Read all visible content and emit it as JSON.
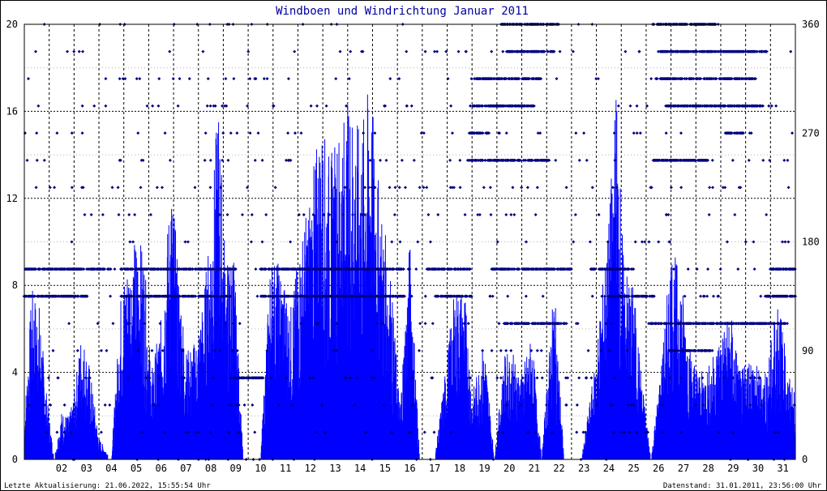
{
  "title": "Windboen und Windrichtung Januar 2011",
  "footer": {
    "left": "Letzte Aktualisierung: 21.06.2022, 15:55:54 Uhr",
    "right": "Datenstand: 31.01.2011, 23:56:00 Uhr"
  },
  "colors": {
    "gust": "#0000ff",
    "direction": "#000080",
    "title": "#0000a0",
    "grid": "#000000"
  },
  "chart_data": {
    "type": "bar",
    "title": "Windboen und Windrichtung Januar 2011",
    "x_days": [
      "02",
      "03",
      "04",
      "05",
      "06",
      "07",
      "08",
      "09",
      "10",
      "11",
      "12",
      "13",
      "14",
      "15",
      "16",
      "17",
      "18",
      "19",
      "20",
      "21",
      "22",
      "23",
      "24",
      "25",
      "26",
      "27",
      "28",
      "29",
      "30",
      "31"
    ],
    "xlim": [
      1,
      32
    ],
    "ylim_left": [
      0,
      20
    ],
    "yticks_left": [
      "0",
      "4",
      "8",
      "12",
      "16",
      "20"
    ],
    "ylim_right": [
      0,
      360
    ],
    "yticks_right": [
      "0",
      "90",
      "180",
      "270",
      "360"
    ],
    "grid": true,
    "series": [
      {
        "type": "bar",
        "gust_envelope_by_day": [
          {
            "day": 1.0,
            "max": 1.8
          },
          {
            "day": 1.3,
            "max": 7.9
          },
          {
            "day": 1.6,
            "max": 7.2
          },
          {
            "day": 1.9,
            "max": 3.0
          },
          {
            "day": 2.2,
            "max": 0.0
          },
          {
            "day": 2.5,
            "max": 2.2
          },
          {
            "day": 2.8,
            "max": 2.0
          },
          {
            "day": 3.0,
            "max": 3.0
          },
          {
            "day": 3.3,
            "max": 6.0
          },
          {
            "day": 3.6,
            "max": 4.5
          },
          {
            "day": 4.0,
            "max": 1.0
          },
          {
            "day": 4.5,
            "max": 0.0
          },
          {
            "day": 4.9,
            "max": 8.0
          },
          {
            "day": 5.2,
            "max": 9.5
          },
          {
            "day": 5.5,
            "max": 10.3
          },
          {
            "day": 5.8,
            "max": 9.8
          },
          {
            "day": 6.1,
            "max": 4.0
          },
          {
            "day": 6.5,
            "max": 6.5
          },
          {
            "day": 6.9,
            "max": 13.0
          },
          {
            "day": 7.2,
            "max": 9.0
          },
          {
            "day": 7.5,
            "max": 5.0
          },
          {
            "day": 7.9,
            "max": 5.5
          },
          {
            "day": 8.2,
            "max": 7.5
          },
          {
            "day": 8.5,
            "max": 11.0
          },
          {
            "day": 8.8,
            "max": 16.8
          },
          {
            "day": 9.1,
            "max": 9.0
          },
          {
            "day": 9.4,
            "max": 10.0
          },
          {
            "day": 9.8,
            "max": 0.0
          },
          {
            "day": 10.5,
            "max": 0.0
          },
          {
            "day": 10.9,
            "max": 9.5
          },
          {
            "day": 11.3,
            "max": 9.0
          },
          {
            "day": 11.7,
            "max": 7.0
          },
          {
            "day": 12.1,
            "max": 10.0
          },
          {
            "day": 12.5,
            "max": 12.5
          },
          {
            "day": 12.9,
            "max": 15.7
          },
          {
            "day": 13.3,
            "max": 14.0
          },
          {
            "day": 13.7,
            "max": 15.5
          },
          {
            "day": 14.1,
            "max": 16.8
          },
          {
            "day": 14.5,
            "max": 15.0
          },
          {
            "day": 14.9,
            "max": 17.5
          },
          {
            "day": 15.3,
            "max": 12.0
          },
          {
            "day": 15.7,
            "max": 9.0
          },
          {
            "day": 16.1,
            "max": 2.5
          },
          {
            "day": 16.5,
            "max": 10.3
          },
          {
            "day": 16.9,
            "max": 0.0
          },
          {
            "day": 17.5,
            "max": 0.0
          },
          {
            "day": 18.3,
            "max": 7.8
          },
          {
            "day": 18.7,
            "max": 8.0
          },
          {
            "day": 19.0,
            "max": 3.0
          },
          {
            "day": 19.5,
            "max": 5.5
          },
          {
            "day": 19.9,
            "max": 0.0
          },
          {
            "day": 20.3,
            "max": 4.8
          },
          {
            "day": 20.6,
            "max": 5.0
          },
          {
            "day": 21.0,
            "max": 4.0
          },
          {
            "day": 21.4,
            "max": 5.8
          },
          {
            "day": 21.8,
            "max": 0.0
          },
          {
            "day": 22.3,
            "max": 8.2
          },
          {
            "day": 22.7,
            "max": 0.0
          },
          {
            "day": 23.4,
            "max": 0.0
          },
          {
            "day": 23.9,
            "max": 4.0
          },
          {
            "day": 24.5,
            "max": 11.0
          },
          {
            "day": 24.8,
            "max": 17.5
          },
          {
            "day": 25.1,
            "max": 9.0
          },
          {
            "day": 25.5,
            "max": 8.0
          },
          {
            "day": 25.8,
            "max": 4.0
          },
          {
            "day": 26.2,
            "max": 0.0
          },
          {
            "day": 26.7,
            "max": 5.5
          },
          {
            "day": 27.0,
            "max": 10.0
          },
          {
            "day": 27.4,
            "max": 8.5
          },
          {
            "day": 27.8,
            "max": 5.0
          },
          {
            "day": 28.2,
            "max": 4.0
          },
          {
            "day": 28.6,
            "max": 4.5
          },
          {
            "day": 29.0,
            "max": 6.0
          },
          {
            "day": 29.4,
            "max": 6.8
          },
          {
            "day": 29.8,
            "max": 4.0
          },
          {
            "day": 30.2,
            "max": 5.0
          },
          {
            "day": 30.6,
            "max": 4.0
          },
          {
            "day": 30.9,
            "max": 4.5
          },
          {
            "day": 31.3,
            "max": 8.0
          },
          {
            "day": 31.7,
            "max": 4.0
          },
          {
            "day": 32.0,
            "max": 3.0
          }
        ]
      },
      {
        "type": "scatter",
        "direction_bands_deg": [
          {
            "deg": 157.5,
            "segments": [
              [
                1.0,
                4.5
              ],
              [
                4.9,
                9.5
              ],
              [
                10.5,
                16.5
              ],
              [
                17.2,
                19.0
              ],
              [
                19.8,
                23.0
              ],
              [
                23.8,
                25.5
              ],
              [
                31.0,
                32.0
              ]
            ]
          },
          {
            "deg": 135.0,
            "segments": [
              [
                1.0,
                3.5
              ],
              [
                4.9,
                9.4
              ],
              [
                10.5,
                16.3
              ],
              [
                17.5,
                19.0
              ],
              [
                24.5,
                26.3
              ],
              [
                30.8,
                32.0
              ]
            ]
          },
          {
            "deg": 112.5,
            "segments": [
              [
                20.3,
                22.8
              ],
              [
                26.2,
                31.6
              ]
            ]
          },
          {
            "deg": 90.0,
            "segments": [
              [
                26.9,
                28.6
              ]
            ]
          },
          {
            "deg": 67.5,
            "segments": [
              [
                9.4,
                10.6
              ]
            ]
          },
          {
            "deg": 360.0,
            "segments": [
              [
                20.2,
                22.5
              ],
              [
                26.2,
                28.8
              ]
            ]
          },
          {
            "deg": 337.5,
            "segments": [
              [
                20.4,
                22.3
              ],
              [
                26.5,
                30.9
              ]
            ]
          },
          {
            "deg": 315.0,
            "segments": [
              [
                19.1,
                21.8
              ],
              [
                26.4,
                30.4
              ]
            ]
          },
          {
            "deg": 292.5,
            "segments": [
              [
                19.0,
                21.5
              ],
              [
                26.8,
                30.7
              ]
            ]
          },
          {
            "deg": 270.0,
            "segments": [
              [
                18.9,
                19.7
              ],
              [
                29.2,
                30.0
              ]
            ]
          },
          {
            "deg": 247.5,
            "segments": [
              [
                18.8,
                22.1
              ],
              [
                26.3,
                28.5
              ]
            ]
          }
        ]
      }
    ]
  }
}
